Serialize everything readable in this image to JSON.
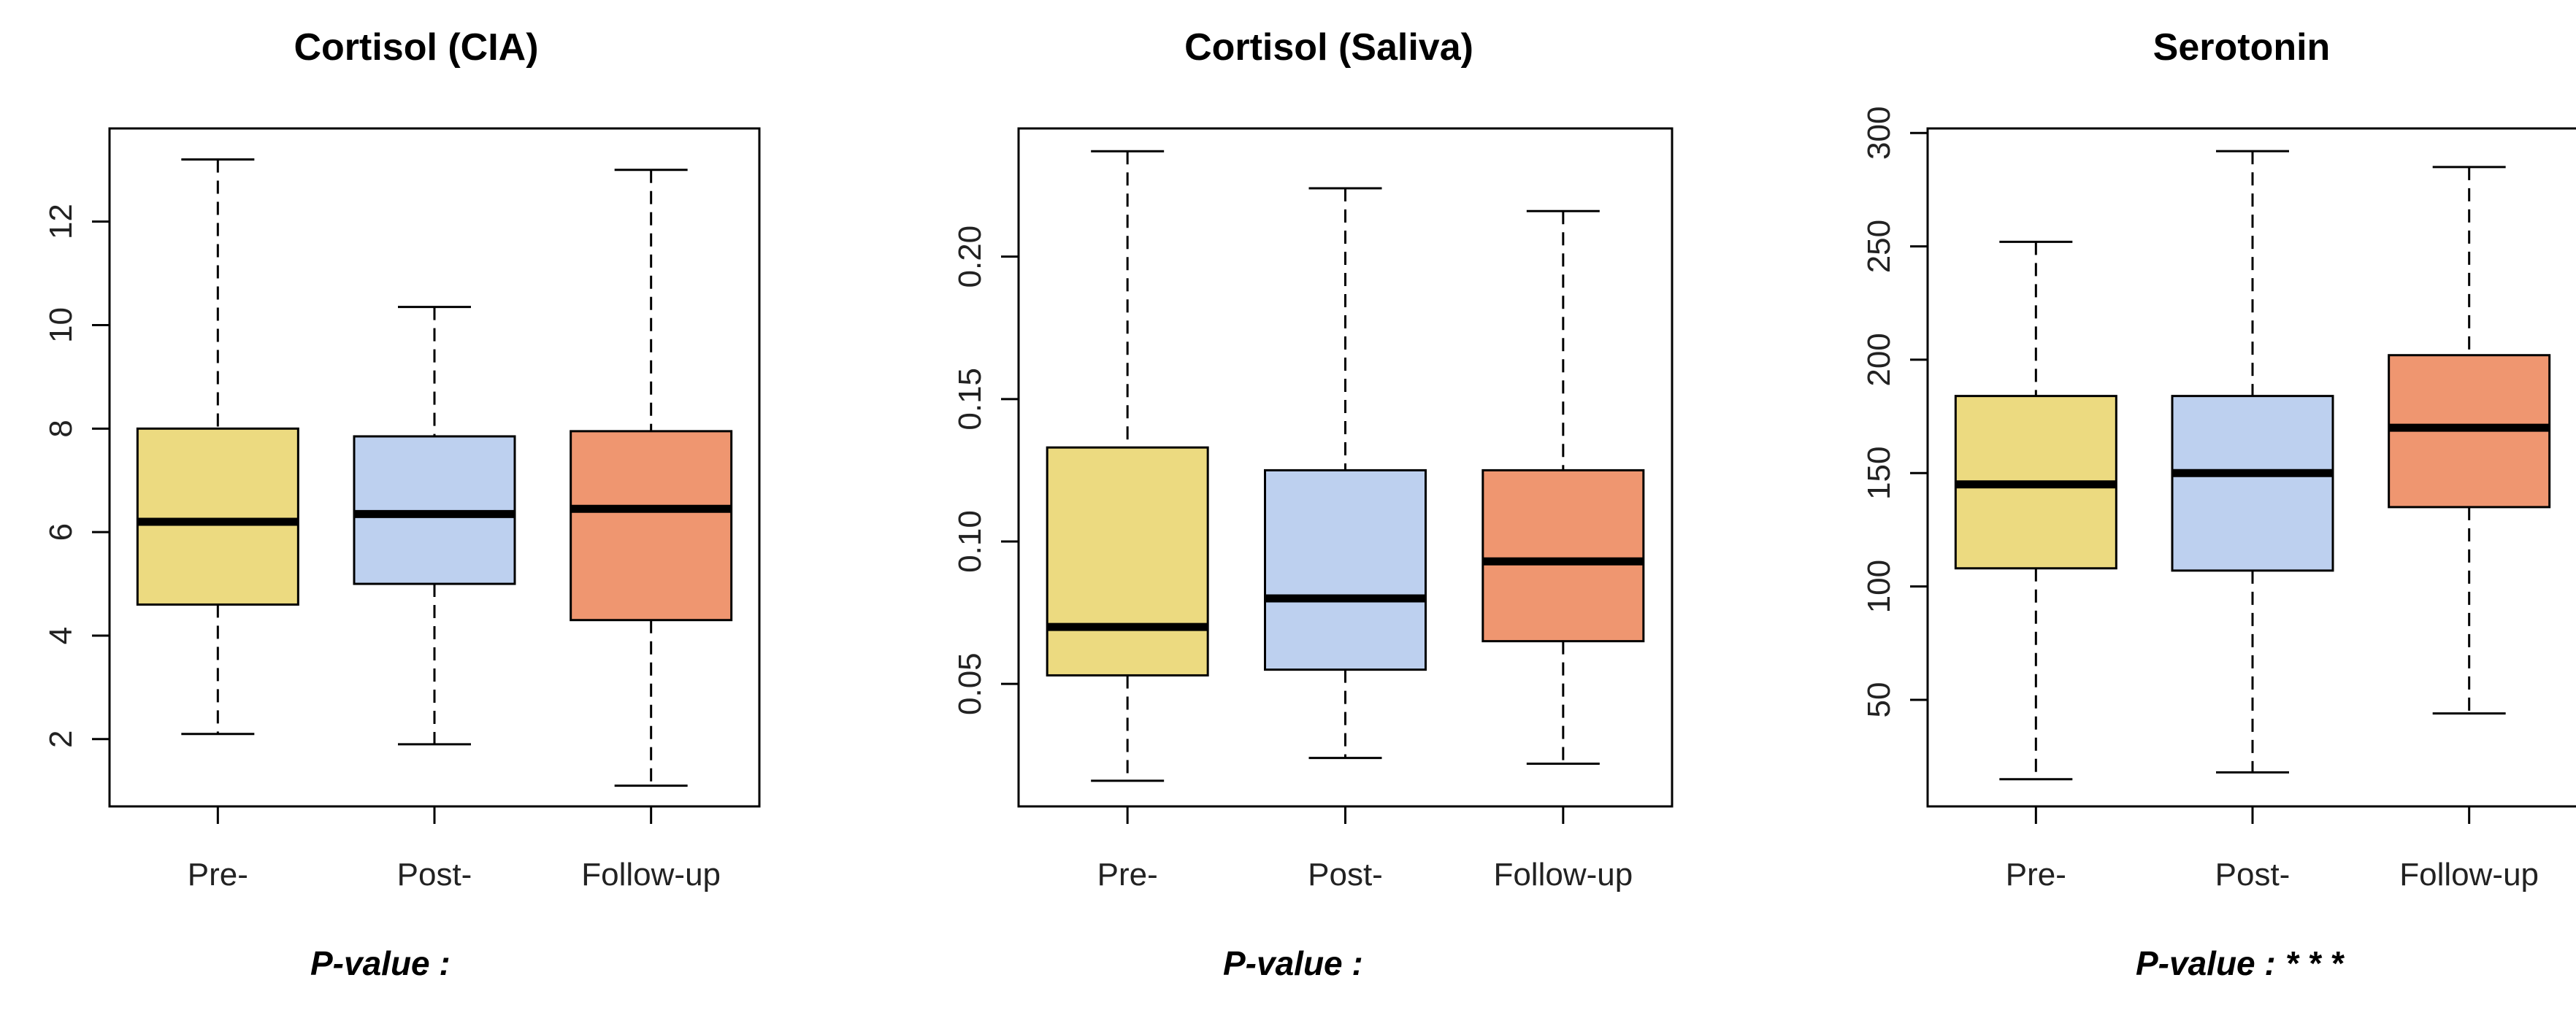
{
  "chart_data": [
    {
      "type": "boxplot",
      "title": "Cortisol (CIA)",
      "categories": [
        "Pre-",
        "Post-",
        "Follow-up"
      ],
      "colors": [
        "#ecda80",
        "#bdd0ef",
        "#ef9670"
      ],
      "ylim": [
        0.7,
        13.8
      ],
      "yticks": [
        "2",
        "4",
        "6",
        "8",
        "10",
        "12"
      ],
      "ytick_values": [
        2,
        4,
        6,
        8,
        10,
        12
      ],
      "boxes": [
        {
          "whisker_low": 2.1,
          "q1": 4.6,
          "median": 6.2,
          "q3": 8.0,
          "whisker_high": 13.2
        },
        {
          "whisker_low": 1.9,
          "q1": 5.0,
          "median": 6.35,
          "q3": 7.85,
          "whisker_high": 10.35
        },
        {
          "whisker_low": 1.1,
          "q1": 4.3,
          "median": 6.45,
          "q3": 7.95,
          "whisker_high": 13.0
        }
      ],
      "pvalue_label": "P-value :",
      "pvalue_marks": ""
    },
    {
      "type": "boxplot",
      "title": "Cortisol (Saliva)",
      "categories": [
        "Pre-",
        "Post-",
        "Follow-up"
      ],
      "colors": [
        "#ecda80",
        "#bdd0ef",
        "#ef9670"
      ],
      "ylim": [
        0.007,
        0.245
      ],
      "yticks": [
        "0.05",
        "0.10",
        "0.15",
        "0.20"
      ],
      "ytick_values": [
        0.05,
        0.1,
        0.15,
        0.2
      ],
      "boxes": [
        {
          "whisker_low": 0.016,
          "q1": 0.053,
          "median": 0.07,
          "q3": 0.133,
          "whisker_high": 0.237
        },
        {
          "whisker_low": 0.024,
          "q1": 0.055,
          "median": 0.08,
          "q3": 0.125,
          "whisker_high": 0.224
        },
        {
          "whisker_low": 0.022,
          "q1": 0.065,
          "median": 0.093,
          "q3": 0.125,
          "whisker_high": 0.216
        }
      ],
      "pvalue_label": "P-value :",
      "pvalue_marks": ""
    },
    {
      "type": "boxplot",
      "title": "Serotonin",
      "categories": [
        "Pre-",
        "Post-",
        "Follow-up"
      ],
      "colors": [
        "#ecda80",
        "#bdd0ef",
        "#ef9670"
      ],
      "ylim": [
        3,
        302
      ],
      "yticks": [
        "50",
        "100",
        "150",
        "200",
        "250",
        "300"
      ],
      "ytick_values": [
        50,
        100,
        150,
        200,
        250,
        300
      ],
      "boxes": [
        {
          "whisker_low": 15,
          "q1": 108,
          "median": 145,
          "q3": 184,
          "whisker_high": 252
        },
        {
          "whisker_low": 18,
          "q1": 107,
          "median": 150,
          "q3": 184,
          "whisker_high": 292
        },
        {
          "whisker_low": 44,
          "q1": 135,
          "median": 170,
          "q3": 202,
          "whisker_high": 285
        }
      ],
      "pvalue_label": "P-value :",
      "pvalue_marks": "* * *"
    }
  ]
}
